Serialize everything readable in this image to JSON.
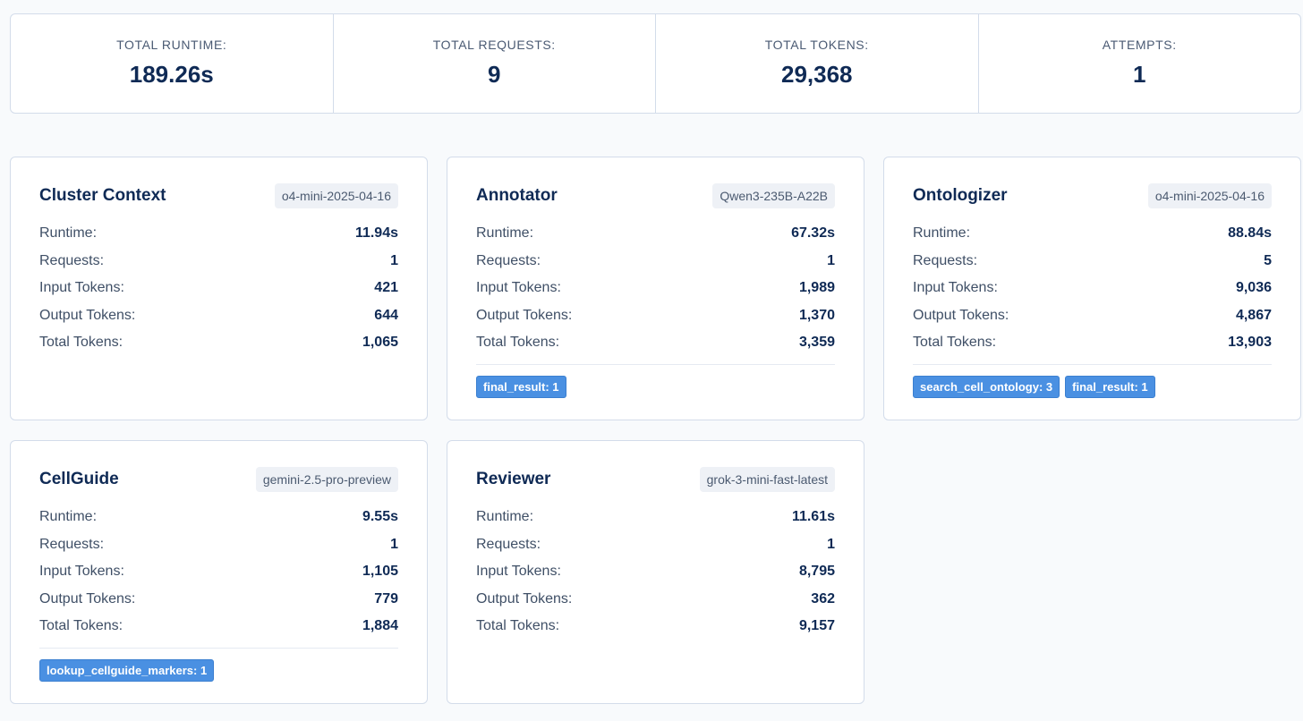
{
  "summary": [
    {
      "label": "TOTAL RUNTIME:",
      "value": "189.26s"
    },
    {
      "label": "TOTAL REQUESTS:",
      "value": "9"
    },
    {
      "label": "TOTAL TOKENS:",
      "value": "29,368"
    },
    {
      "label": "ATTEMPTS:",
      "value": "1"
    }
  ],
  "labels": {
    "runtime": "Runtime:",
    "requests": "Requests:",
    "input_tokens": "Input Tokens:",
    "output_tokens": "Output Tokens:",
    "total_tokens": "Total Tokens:"
  },
  "cards": [
    {
      "title": "Cluster Context",
      "model": "o4-mini-2025-04-16",
      "runtime": "11.94s",
      "requests": "1",
      "input_tokens": "421",
      "output_tokens": "644",
      "total_tokens": "1,065",
      "tools": []
    },
    {
      "title": "Annotator",
      "model": "Qwen3-235B-A22B",
      "runtime": "67.32s",
      "requests": "1",
      "input_tokens": "1,989",
      "output_tokens": "1,370",
      "total_tokens": "3,359",
      "tools": [
        "final_result: 1"
      ]
    },
    {
      "title": "Ontologizer",
      "model": "o4-mini-2025-04-16",
      "runtime": "88.84s",
      "requests": "5",
      "input_tokens": "9,036",
      "output_tokens": "4,867",
      "total_tokens": "13,903",
      "tools": [
        "search_cell_ontology: 3",
        "final_result: 1"
      ]
    },
    {
      "title": "CellGuide",
      "model": "gemini-2.5-pro-preview",
      "runtime": "9.55s",
      "requests": "1",
      "input_tokens": "1,105",
      "output_tokens": "779",
      "total_tokens": "1,884",
      "tools": [
        "lookup_cellguide_markers: 1"
      ]
    },
    {
      "title": "Reviewer",
      "model": "grok-3-mini-fast-latest",
      "runtime": "11.61s",
      "requests": "1",
      "input_tokens": "8,795",
      "output_tokens": "362",
      "total_tokens": "9,157",
      "tools": []
    }
  ],
  "colors": {
    "accent": "#4a90e2",
    "title": "#0f2a55",
    "border": "#d3dcea",
    "background": "#f8fafc"
  }
}
